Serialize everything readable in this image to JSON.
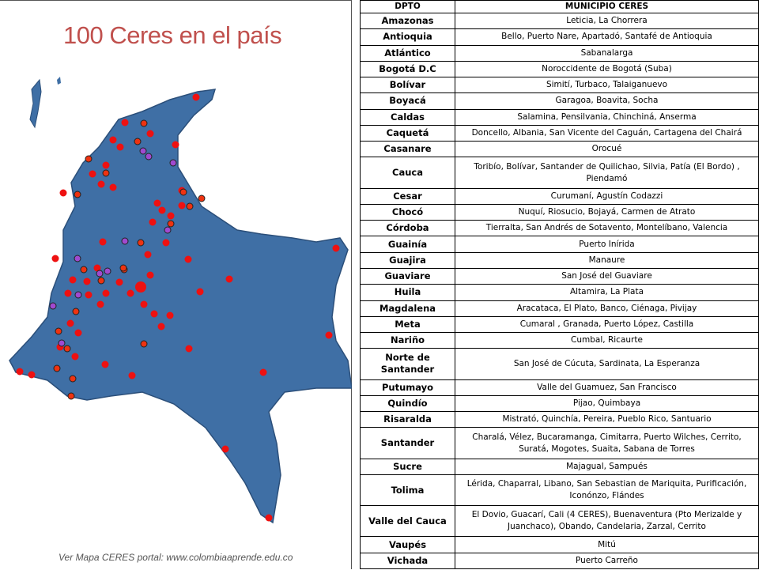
{
  "title": "100 Ceres en el país",
  "footnote": "Ver Mapa CERES portal: www.colombiaaprende.edu.co",
  "table": {
    "header": [
      "DPTO",
      "MUNICIPIO CERES"
    ],
    "rows": [
      [
        "Amazonas",
        "Leticia, La Chorrera"
      ],
      [
        "Antioquia",
        "Bello, Puerto Nare, Apartadó, Santafé de Antioquia"
      ],
      [
        "Atlántico",
        "Sabanalarga"
      ],
      [
        "Bogotá D.C",
        "Noroccidente de Bogotá (Suba)"
      ],
      [
        "Bolívar",
        "Simití, Turbaco, Talaiganuevo"
      ],
      [
        "Boyacá",
        "Garagoa, Boavita, Socha"
      ],
      [
        "Caldas",
        "Salamina, Pensilvania, Chinchiná, Anserma"
      ],
      [
        "Caquetá",
        "Doncello, Albania, San Vicente del Caguán, Cartagena del Chairá"
      ],
      [
        "Casanare",
        "Orocué"
      ],
      [
        "Cauca",
        "Toribío, Bolívar, Santander de Quilichao, Silvia, Patía (El Bordo) , Piendamó"
      ],
      [
        "Cesar",
        "Curumaní, Agustín Codazzi"
      ],
      [
        "Chocó",
        "Nuquí, Riosucio, Bojayá, Carmen de Atrato"
      ],
      [
        "Córdoba",
        "Tierralta, San Andrés de Sotavento, Montelíbano, Valencia"
      ],
      [
        "Guainía",
        "Puerto Inírida"
      ],
      [
        "Guajira",
        "Manaure"
      ],
      [
        "Guaviare",
        "San José del Guaviare"
      ],
      [
        "Huila",
        "Altamira, La Plata"
      ],
      [
        "Magdalena",
        "Aracataca, El Plato, Banco, Ciénaga, Pivijay"
      ],
      [
        "Meta",
        "Cumaral , Granada, Puerto López, Castilla"
      ],
      [
        "Nariño",
        "Cumbal, Ricaurte"
      ],
      [
        "Norte de Santander",
        "San José de Cúcuta, Sardinata, La Esperanza"
      ],
      [
        "Putumayo",
        "Valle del Guamuez, San Francisco"
      ],
      [
        "Quindío",
        "Pijao, Quimbaya"
      ],
      [
        "Risaralda",
        "Mistrató, Quinchía, Pereira,  Pueblo Rico, Santuario"
      ],
      [
        "Santander",
        "Charalá, Vélez, Bucaramanga, Cimitarra, Puerto Wilches, Cerrito, Suratá, Mogotes, Suaita, Sabana de Torres"
      ],
      [
        "Sucre",
        "Majagual, Sampués"
      ],
      [
        "Tolima",
        "Lérida, Chaparral, Libano, San Sebastian de Mariquita, Purificación, Iconónzo, Flándes"
      ],
      [
        "Valle del Cauca",
        "El Dovio, Guacarí, Cali (4 CERES), Buenaventura (Pto Merizalde y Juanchaco), Obando, Candelaria, Zarzal, Cerrito"
      ],
      [
        "Vaupés",
        "Mitú"
      ],
      [
        "Vichada",
        "Puerto Carreño"
      ]
    ]
  }
}
